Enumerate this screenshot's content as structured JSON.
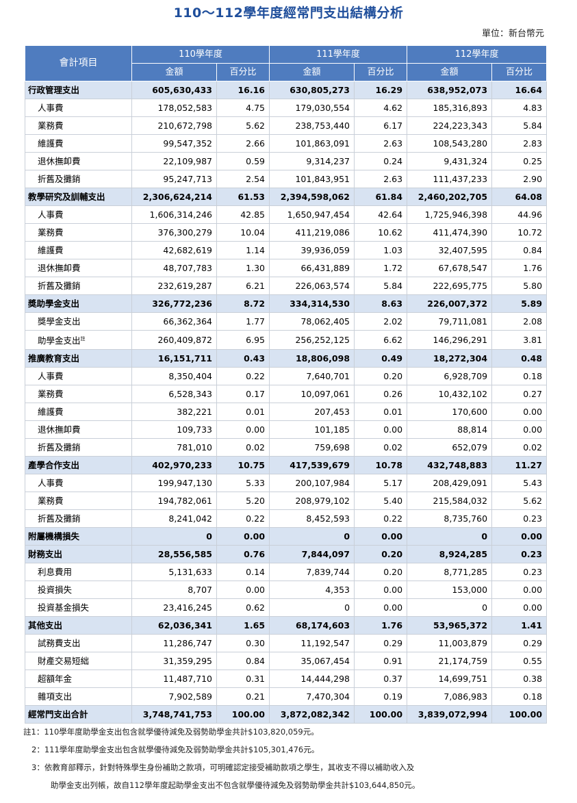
{
  "title": "110～112學年度經常門支出結構分析",
  "unit": "單位：新台幣元",
  "header": {
    "item": "會計項目",
    "years": [
      "110學年度",
      "111學年度",
      "112學年度"
    ],
    "amount": "金額",
    "percent": "百分比"
  },
  "rows": [
    {
      "type": "cat",
      "name": "行政管理支出",
      "v": [
        "605,630,433",
        "16.16",
        "630,805,273",
        "16.29",
        "638,952,073",
        "16.64"
      ]
    },
    {
      "type": "sub",
      "name": "人事費",
      "v": [
        "178,052,583",
        "4.75",
        "179,030,554",
        "4.62",
        "185,316,893",
        "4.83"
      ]
    },
    {
      "type": "sub",
      "name": "業務費",
      "v": [
        "210,672,798",
        "5.62",
        "238,753,440",
        "6.17",
        "224,223,343",
        "5.84"
      ]
    },
    {
      "type": "sub",
      "name": "維護費",
      "v": [
        "99,547,352",
        "2.66",
        "101,863,091",
        "2.63",
        "108,543,280",
        "2.83"
      ]
    },
    {
      "type": "sub",
      "name": "退休撫卹費",
      "v": [
        "22,109,987",
        "0.59",
        "9,314,237",
        "0.24",
        "9,431,324",
        "0.25"
      ]
    },
    {
      "type": "sub",
      "name": "折舊及攤銷",
      "v": [
        "95,247,713",
        "2.54",
        "101,843,951",
        "2.63",
        "111,437,233",
        "2.90"
      ]
    },
    {
      "type": "cat",
      "name": "教學研究及訓輔支出",
      "v": [
        "2,306,624,214",
        "61.53",
        "2,394,598,062",
        "61.84",
        "2,460,202,705",
        "64.08"
      ]
    },
    {
      "type": "sub",
      "name": "人事費",
      "v": [
        "1,606,314,246",
        "42.85",
        "1,650,947,454",
        "42.64",
        "1,725,946,398",
        "44.96"
      ]
    },
    {
      "type": "sub",
      "name": "業務費",
      "v": [
        "376,300,279",
        "10.04",
        "411,219,086",
        "10.62",
        "411,474,390",
        "10.72"
      ]
    },
    {
      "type": "sub",
      "name": "維護費",
      "v": [
        "42,682,619",
        "1.14",
        "39,936,059",
        "1.03",
        "32,407,595",
        "0.84"
      ]
    },
    {
      "type": "sub",
      "name": "退休撫卹費",
      "v": [
        "48,707,783",
        "1.30",
        "66,431,889",
        "1.72",
        "67,678,547",
        "1.76"
      ]
    },
    {
      "type": "sub",
      "name": "折舊及攤銷",
      "v": [
        "232,619,287",
        "6.21",
        "226,063,574",
        "5.84",
        "222,695,775",
        "5.80"
      ]
    },
    {
      "type": "cat",
      "name": "獎助學金支出",
      "v": [
        "326,772,236",
        "8.72",
        "334,314,530",
        "8.63",
        "226,007,372",
        "5.89"
      ]
    },
    {
      "type": "sub",
      "name": "獎學金支出",
      "v": [
        "66,362,364",
        "1.77",
        "78,062,405",
        "2.02",
        "79,711,081",
        "2.08"
      ]
    },
    {
      "type": "sub",
      "name": "助學金支出",
      "note": "註",
      "v": [
        "260,409,872",
        "6.95",
        "256,252,125",
        "6.62",
        "146,296,291",
        "3.81"
      ]
    },
    {
      "type": "cat",
      "name": "推廣教育支出",
      "v": [
        "16,151,711",
        "0.43",
        "18,806,098",
        "0.49",
        "18,272,304",
        "0.48"
      ]
    },
    {
      "type": "sub",
      "name": "人事費",
      "v": [
        "8,350,404",
        "0.22",
        "7,640,701",
        "0.20",
        "6,928,709",
        "0.18"
      ]
    },
    {
      "type": "sub",
      "name": "業務費",
      "v": [
        "6,528,343",
        "0.17",
        "10,097,061",
        "0.26",
        "10,432,102",
        "0.27"
      ]
    },
    {
      "type": "sub",
      "name": "維護費",
      "v": [
        "382,221",
        "0.01",
        "207,453",
        "0.01",
        "170,600",
        "0.00"
      ]
    },
    {
      "type": "sub",
      "name": "退休撫卹費",
      "v": [
        "109,733",
        "0.00",
        "101,185",
        "0.00",
        "88,814",
        "0.00"
      ]
    },
    {
      "type": "sub",
      "name": "折舊及攤銷",
      "v": [
        "781,010",
        "0.02",
        "759,698",
        "0.02",
        "652,079",
        "0.02"
      ]
    },
    {
      "type": "cat",
      "name": "產學合作支出",
      "v": [
        "402,970,233",
        "10.75",
        "417,539,679",
        "10.78",
        "432,748,883",
        "11.27"
      ]
    },
    {
      "type": "sub",
      "name": "人事費",
      "v": [
        "199,947,130",
        "5.33",
        "200,107,984",
        "5.17",
        "208,429,091",
        "5.43"
      ]
    },
    {
      "type": "sub",
      "name": "業務費",
      "v": [
        "194,782,061",
        "5.20",
        "208,979,102",
        "5.40",
        "215,584,032",
        "5.62"
      ]
    },
    {
      "type": "sub",
      "name": "折舊及攤銷",
      "v": [
        "8,241,042",
        "0.22",
        "8,452,593",
        "0.22",
        "8,735,760",
        "0.23"
      ]
    },
    {
      "type": "cat",
      "name": "附屬機構損失",
      "v": [
        "0",
        "0.00",
        "0",
        "0.00",
        "0",
        "0.00"
      ]
    },
    {
      "type": "cat",
      "name": "財務支出",
      "v": [
        "28,556,585",
        "0.76",
        "7,844,097",
        "0.20",
        "8,924,285",
        "0.23"
      ]
    },
    {
      "type": "sub",
      "name": "利息費用",
      "v": [
        "5,131,633",
        "0.14",
        "7,839,744",
        "0.20",
        "8,771,285",
        "0.23"
      ]
    },
    {
      "type": "sub",
      "name": "投資損失",
      "v": [
        "8,707",
        "0.00",
        "4,353",
        "0.00",
        "153,000",
        "0.00"
      ]
    },
    {
      "type": "sub",
      "name": "投資基金損失",
      "v": [
        "23,416,245",
        "0.62",
        "0",
        "0.00",
        "0",
        "0.00"
      ]
    },
    {
      "type": "cat",
      "name": "其他支出",
      "v": [
        "62,036,341",
        "1.65",
        "68,174,603",
        "1.76",
        "53,965,372",
        "1.41"
      ]
    },
    {
      "type": "sub",
      "name": "試務費支出",
      "v": [
        "11,286,747",
        "0.30",
        "11,192,547",
        "0.29",
        "11,003,879",
        "0.29"
      ]
    },
    {
      "type": "sub",
      "name": "財產交易短絀",
      "v": [
        "31,359,295",
        "0.84",
        "35,067,454",
        "0.91",
        "21,174,759",
        "0.55"
      ]
    },
    {
      "type": "sub",
      "name": "超額年金",
      "v": [
        "11,487,710",
        "0.31",
        "14,444,298",
        "0.37",
        "14,699,751",
        "0.38"
      ]
    },
    {
      "type": "sub",
      "name": "雜項支出",
      "v": [
        "7,902,589",
        "0.21",
        "7,470,304",
        "0.19",
        "7,086,983",
        "0.18"
      ]
    },
    {
      "type": "total",
      "name": "經常門支出合計",
      "v": [
        "3,748,741,753",
        "100.00",
        "3,872,082,342",
        "100.00",
        "3,839,072,994",
        "100.00"
      ]
    }
  ],
  "notes": [
    "註1：110學年度助學金支出包含就學優待減免及弱勢助學金共計$103,820,059元。",
    "2：111學年度助學金支出包含就學優待減免及弱勢助學金共計$105,301,476元。",
    "3：依教育部釋示，針對特殊學生身份補助之款項，可明確認定接受補助款項之學生，其收支不得以補助收入及",
    "助學金支出列帳，故自112學年度起助學金支出不包含就學優待減免及弱勢助學金共計$103,644,850元。"
  ]
}
